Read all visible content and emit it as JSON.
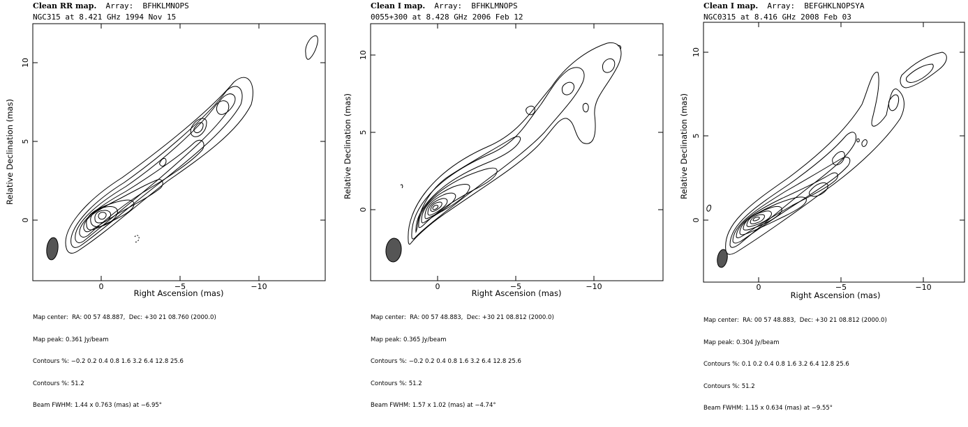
{
  "panels": [
    {
      "title_head": "Clean RR map.",
      "title_array": "  Array:  BFHKLMNOPS",
      "subtitle": "NGC315 at 8.421 GHz 1994 Nov 15",
      "xlabel": "Right Ascension  (mas)",
      "ylabel": "Relative Declination  (mas)",
      "xticks": [
        "0",
        "−5",
        "−10"
      ],
      "yticks": [
        "0",
        "5",
        "10"
      ],
      "info": {
        "map_center": "Map center:  RA: 00 57 48.887,  Dec: +30 21 08.760 (2000.0)",
        "map_peak": "Map peak: 0.361 Jy/beam",
        "contours": "Contours %: −0.2 0.2 0.4 0.8 1.6 3.2 6.4 12.8 25.6",
        "contours2": "Contours %: 51.2",
        "beam": "Beam FWHM: 1.44 x 0.763 (mas) at −6.95°"
      }
    },
    {
      "title_head": "Clean I map.",
      "title_array": "  Array:  BFHKLMNOPS",
      "subtitle": "0055+300 at 8.428 GHz 2006 Feb 12",
      "xlabel": "Right Ascension  (mas)",
      "ylabel": "Relative Declination  (mas)",
      "xticks": [
        "0",
        "−5",
        "−10"
      ],
      "yticks": [
        "0",
        "5",
        "10"
      ],
      "info": {
        "map_center": "Map center:  RA: 00 57 48.883,  Dec: +30 21 08.812 (2000.0)",
        "map_peak": "Map peak: 0.365 Jy/beam",
        "contours": "Contours %: −0.2 0.2 0.4 0.8 1.6 3.2 6.4 12.8 25.6",
        "contours2": "Contours %: 51.2",
        "beam": "Beam FWHM: 1.57 x 1.02 (mas) at −4.74°"
      }
    },
    {
      "title_head": "Clean I map.",
      "title_array": "  Array:  BEFGHKLNOPSYA",
      "subtitle": "NGC0315 at 8.416 GHz 2008 Feb 03",
      "xlabel": "Right Ascension  (mas)",
      "ylabel": "Relative Declination  (mas)",
      "xticks": [
        "0",
        "−5",
        "−10"
      ],
      "yticks": [
        "0",
        "5",
        "10"
      ],
      "info": {
        "map_center": "Map center:  RA: 00 57 48.883,  Dec: +30 21 08.812 (2000.0)",
        "map_peak": "Map peak: 0.304 Jy/beam",
        "contours": "Contours %: 0.1 0.2 0.4 0.8 1.6 3.2 6.4 12.8 25.6",
        "contours2": "Contours %: 51.2",
        "beam": "Beam FWHM: 1.15 x 0.634 (mas) at −9.55°"
      }
    }
  ]
}
